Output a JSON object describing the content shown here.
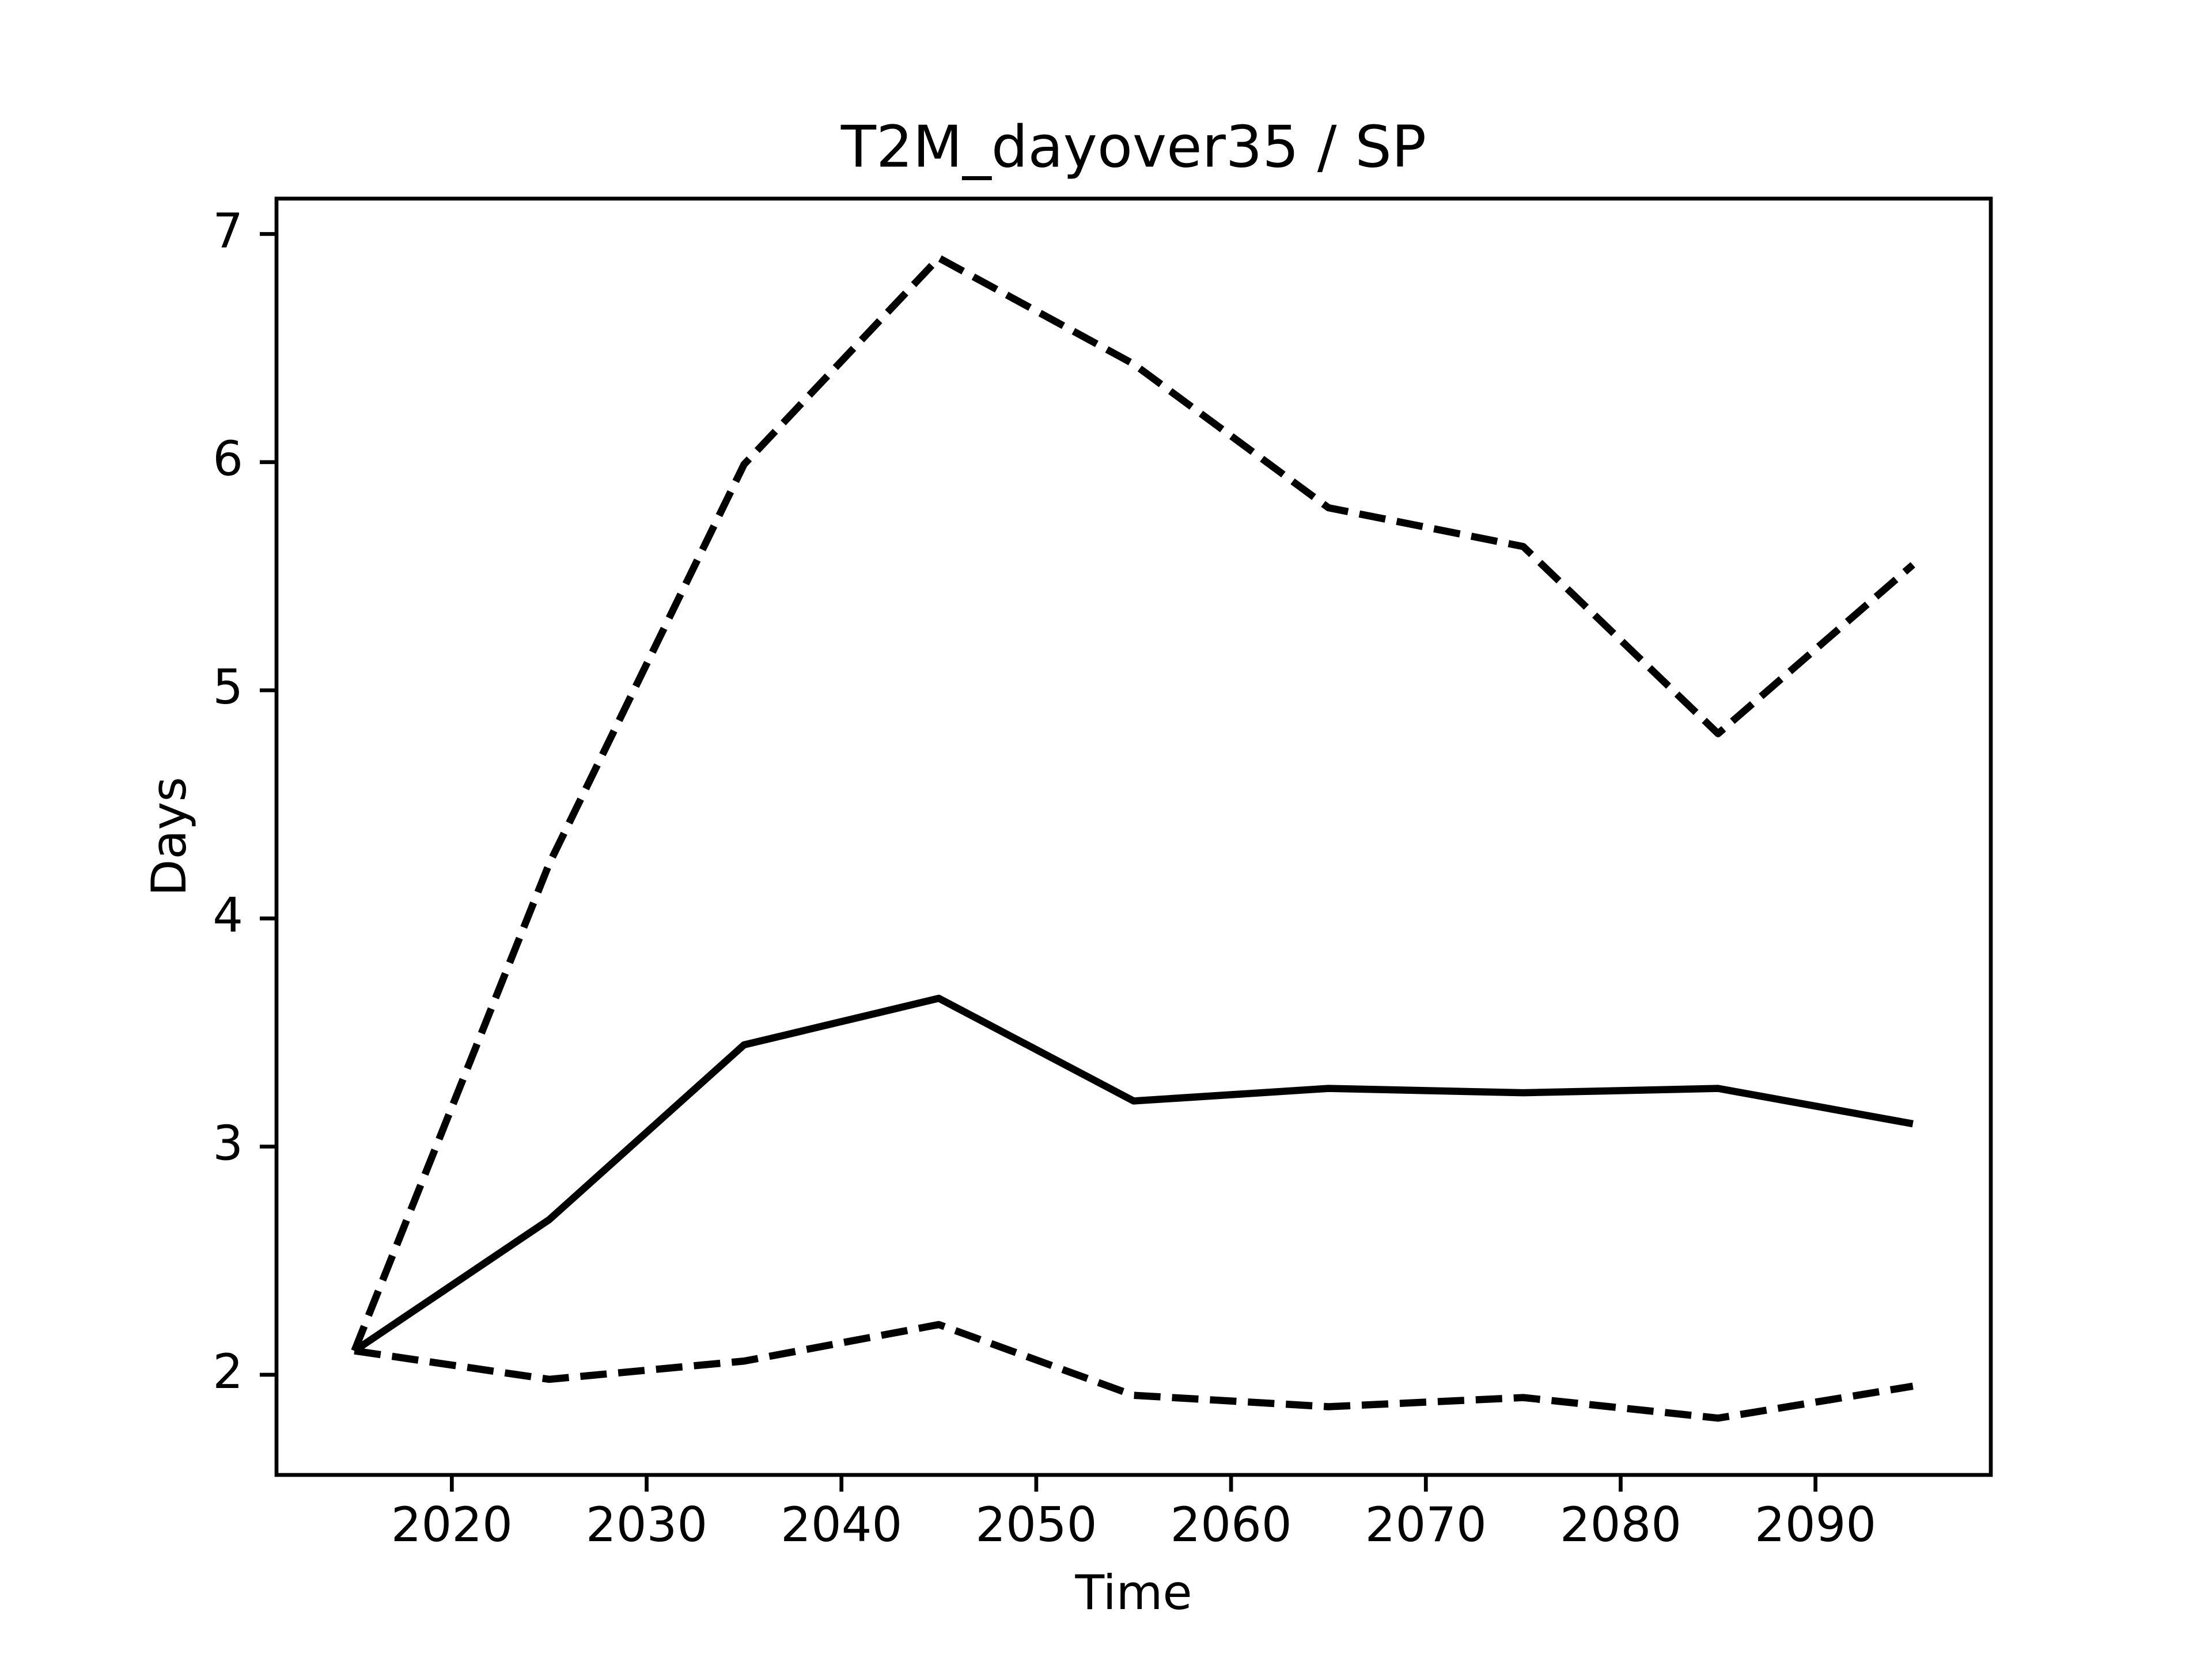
{
  "chart_data": {
    "type": "line",
    "title": "T2M_dayover35 / SP",
    "xlabel": "Time",
    "ylabel": "Days",
    "x": [
      2015,
      2025,
      2035,
      2045,
      2055,
      2065,
      2075,
      2085,
      2095
    ],
    "series": [
      {
        "color": "#000000",
        "dashed": true,
        "values": [
          2.105,
          4.24,
          5.99,
          6.895,
          6.43,
          5.8,
          5.63,
          4.81,
          5.55
        ]
      },
      {
        "color": "#000000",
        "dashed": false,
        "values": [
          2.105,
          2.68,
          3.446,
          3.65,
          3.2,
          3.255,
          3.236,
          3.255,
          3.1
        ]
      },
      {
        "color": "#000000",
        "dashed": true,
        "values": [
          2.105,
          1.98,
          2.06,
          2.22,
          1.91,
          1.86,
          1.9,
          1.81,
          1.95
        ]
      }
    ],
    "xlim": [
      2011,
      2099
    ],
    "xticks": [
      2020,
      2030,
      2040,
      2050,
      2060,
      2070,
      2080,
      2090
    ],
    "ylim": [
      1.561,
      7.155
    ],
    "yticks": [
      2,
      3,
      4,
      5,
      6,
      7
    ],
    "grid": false
  }
}
